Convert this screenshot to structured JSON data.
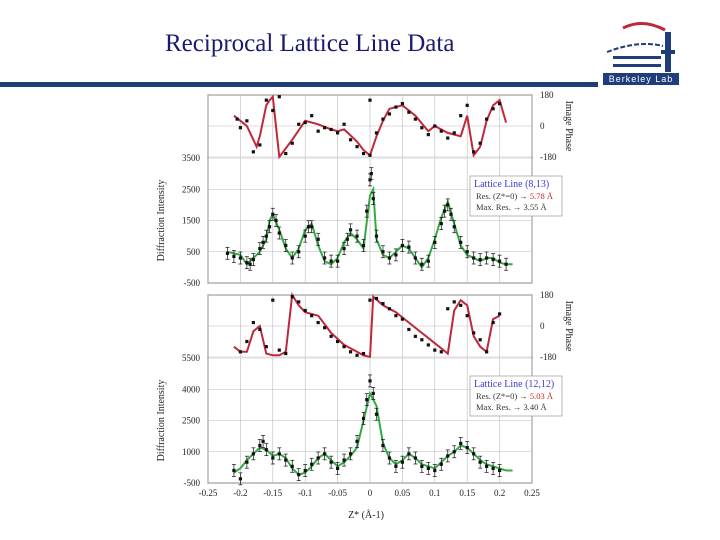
{
  "page": {
    "title": "Reciprocal Lattice Line Data",
    "logo_text": "Berkeley Lab"
  },
  "colors": {
    "title": "#1a1a6e",
    "rule": "#1f3d7a",
    "phase_curve": "#c0283a",
    "intensity_curve": "#33aa44",
    "points": "#111111",
    "grid": "#bbbbbb"
  },
  "chart_data": [
    {
      "type": "scatter",
      "panel": "phase",
      "ylabel": "Image Phase",
      "xlim": [
        -0.25,
        0.25
      ],
      "ylim": [
        -180,
        180
      ],
      "yticks": [
        "180",
        "0",
        "-180"
      ],
      "fit_curve": {
        "x": [
          -0.21,
          -0.2,
          -0.19,
          -0.175,
          -0.17,
          -0.16,
          -0.155,
          -0.15,
          -0.14,
          -0.12,
          -0.1,
          -0.08,
          -0.06,
          -0.05,
          -0.04,
          -0.02,
          -0.01,
          0.0,
          0.01,
          0.02,
          0.03,
          0.05,
          0.07,
          0.09,
          0.1,
          0.12,
          0.14,
          0.15,
          0.16,
          0.17,
          0.18,
          0.19,
          0.2,
          0.21
        ],
        "y": [
          60,
          30,
          0,
          -120,
          -60,
          120,
          150,
          170,
          -180,
          -80,
          30,
          10,
          -20,
          -30,
          -20,
          -90,
          -140,
          -170,
          -60,
          30,
          100,
          120,
          60,
          -30,
          0,
          -40,
          -60,
          60,
          -170,
          -120,
          30,
          120,
          150,
          20
        ]
      },
      "points": {
        "x": [
          -0.205,
          -0.2,
          -0.19,
          -0.18,
          -0.17,
          -0.16,
          -0.15,
          -0.14,
          -0.13,
          -0.12,
          -0.11,
          -0.1,
          -0.09,
          -0.08,
          -0.07,
          -0.06,
          -0.05,
          -0.04,
          -0.03,
          -0.02,
          -0.01,
          0.0,
          0.0,
          0.01,
          0.02,
          0.03,
          0.04,
          0.05,
          0.06,
          0.07,
          0.08,
          0.09,
          0.1,
          0.11,
          0.12,
          0.13,
          0.14,
          0.15,
          0.16,
          0.17,
          0.18,
          0.19,
          0.2
        ],
        "y": [
          40,
          -10,
          30,
          -150,
          -110,
          150,
          90,
          170,
          -160,
          -100,
          10,
          20,
          60,
          -30,
          -10,
          -20,
          -40,
          10,
          -80,
          -120,
          -160,
          -170,
          150,
          -40,
          40,
          70,
          110,
          130,
          80,
          40,
          -10,
          -50,
          0,
          -30,
          -70,
          -40,
          60,
          120,
          -150,
          -100,
          40,
          100,
          130
        ]
      }
    },
    {
      "type": "line",
      "panel": "intensity",
      "ylabel": "Diffraction Intensity",
      "xlim": [
        -0.25,
        0.25
      ],
      "ylim": [
        -500,
        3500
      ],
      "yticks": [
        "3500",
        "2500",
        "1500",
        "500",
        "-500"
      ],
      "legend": {
        "title": "Lattice Line (8,13)",
        "line1_label": "Res. (Z*=0) → ",
        "line1_value": "5.78 Å",
        "line2_label": "Max. Res. → 3.55 Å"
      },
      "fit_curve": {
        "x": [
          -0.22,
          -0.2,
          -0.19,
          -0.18,
          -0.17,
          -0.16,
          -0.155,
          -0.15,
          -0.14,
          -0.13,
          -0.12,
          -0.11,
          -0.1,
          -0.09,
          -0.08,
          -0.07,
          -0.06,
          -0.05,
          -0.04,
          -0.03,
          -0.02,
          -0.01,
          0.0,
          0.005,
          0.01,
          0.02,
          0.03,
          0.04,
          0.05,
          0.06,
          0.07,
          0.08,
          0.09,
          0.1,
          0.11,
          0.12,
          0.13,
          0.14,
          0.15,
          0.16,
          0.17,
          0.18,
          0.19,
          0.2,
          0.21,
          0.22
        ],
        "y": [
          500,
          400,
          100,
          300,
          500,
          900,
          1500,
          1700,
          1200,
          600,
          300,
          600,
          1200,
          1400,
          700,
          200,
          100,
          300,
          800,
          1100,
          900,
          600,
          2300,
          2500,
          900,
          400,
          300,
          500,
          700,
          600,
          300,
          0,
          300,
          900,
          1600,
          2100,
          1400,
          700,
          400,
          300,
          200,
          300,
          300,
          150,
          100,
          100
        ]
      },
      "points": {
        "x": [
          -0.22,
          -0.21,
          -0.2,
          -0.19,
          -0.185,
          -0.18,
          -0.17,
          -0.165,
          -0.16,
          -0.155,
          -0.15,
          -0.145,
          -0.14,
          -0.13,
          -0.12,
          -0.11,
          -0.1,
          -0.095,
          -0.09,
          -0.08,
          -0.07,
          -0.06,
          -0.05,
          -0.04,
          -0.035,
          -0.03,
          -0.02,
          -0.01,
          -0.005,
          0.0,
          0.002,
          0.005,
          0.01,
          0.02,
          0.03,
          0.04,
          0.05,
          0.06,
          0.07,
          0.08,
          0.09,
          0.1,
          0.11,
          0.115,
          0.12,
          0.125,
          0.13,
          0.14,
          0.15,
          0.16,
          0.17,
          0.18,
          0.19,
          0.2,
          0.21
        ],
        "y": [
          450,
          350,
          300,
          150,
          100,
          250,
          600,
          800,
          1000,
          1300,
          1700,
          1500,
          1100,
          700,
          300,
          500,
          1000,
          1300,
          1300,
          900,
          300,
          200,
          200,
          600,
          900,
          1200,
          1000,
          700,
          1800,
          2800,
          3000,
          2200,
          1000,
          500,
          300,
          400,
          700,
          650,
          300,
          100,
          200,
          800,
          1400,
          1800,
          2000,
          1700,
          1300,
          800,
          500,
          300,
          250,
          300,
          250,
          200,
          100
        ]
      }
    },
    {
      "type": "scatter",
      "panel": "phase",
      "ylabel": "Image Phase",
      "xlim": [
        -0.25,
        0.25
      ],
      "ylim": [
        -180,
        180
      ],
      "yticks": [
        "180",
        "0",
        "-180"
      ],
      "fit_curve": {
        "x": [
          -0.21,
          -0.2,
          -0.19,
          -0.18,
          -0.17,
          -0.16,
          -0.15,
          -0.14,
          -0.13,
          -0.12,
          -0.11,
          -0.1,
          -0.08,
          -0.06,
          -0.04,
          -0.02,
          -0.01,
          0.0,
          0.005,
          0.02,
          0.04,
          0.06,
          0.08,
          0.1,
          0.12,
          0.13,
          0.14,
          0.15,
          0.16,
          0.17,
          0.18,
          0.19,
          0.2
        ],
        "y": [
          -120,
          -150,
          -150,
          -30,
          0,
          -160,
          -170,
          -170,
          -150,
          180,
          120,
          80,
          60,
          -40,
          -110,
          -150,
          -170,
          -180,
          170,
          120,
          80,
          20,
          -40,
          -100,
          -160,
          90,
          150,
          120,
          -60,
          -120,
          -150,
          40,
          60
        ]
      },
      "points": {
        "x": [
          -0.2,
          -0.19,
          -0.18,
          -0.17,
          -0.16,
          -0.15,
          -0.14,
          -0.13,
          -0.12,
          -0.11,
          -0.1,
          -0.09,
          -0.08,
          -0.07,
          -0.06,
          -0.05,
          -0.04,
          -0.03,
          -0.02,
          -0.01,
          0.0,
          0.01,
          0.02,
          0.03,
          0.04,
          0.05,
          0.06,
          0.07,
          0.08,
          0.09,
          0.1,
          0.11,
          0.12,
          0.13,
          0.14,
          0.15,
          0.16,
          0.17,
          0.18,
          0.19,
          0.2
        ],
        "y": [
          -150,
          -90,
          20,
          -20,
          -120,
          150,
          -140,
          -160,
          170,
          140,
          90,
          60,
          20,
          -10,
          -60,
          -90,
          -120,
          -150,
          -170,
          -160,
          150,
          160,
          130,
          100,
          60,
          40,
          -20,
          -60,
          -80,
          -110,
          -140,
          -150,
          100,
          140,
          120,
          60,
          -40,
          -80,
          -150,
          20,
          70
        ]
      }
    },
    {
      "type": "line",
      "panel": "intensity",
      "ylabel": "Diffraction Intensity",
      "xlabel": "Z* (Å-1)",
      "xlim": [
        -0.25,
        0.25
      ],
      "xticks": [
        "-0.25",
        "-0.2",
        "-0.15",
        "-0.1",
        "-0.05",
        "0",
        "0.05",
        "0.1",
        "0.15",
        "0.2",
        "0.25"
      ],
      "ylim": [
        -500,
        5500
      ],
      "yticks": [
        "5500",
        "4000",
        "2500",
        "1000",
        "-500"
      ],
      "legend": {
        "title": "Lattice Line (12,12)",
        "line1_label": "Res. (Z*=0) → ",
        "line1_value": "5.03 Å",
        "line2_label": "Max. Res. → 3.40 Å"
      },
      "fit_curve": {
        "x": [
          -0.21,
          -0.2,
          -0.19,
          -0.18,
          -0.17,
          -0.16,
          -0.15,
          -0.14,
          -0.13,
          -0.12,
          -0.11,
          -0.1,
          -0.09,
          -0.08,
          -0.07,
          -0.06,
          -0.05,
          -0.04,
          -0.03,
          -0.02,
          -0.01,
          0.0,
          0.01,
          0.02,
          0.03,
          0.04,
          0.05,
          0.06,
          0.07,
          0.08,
          0.09,
          0.1,
          0.11,
          0.12,
          0.13,
          0.14,
          0.15,
          0.16,
          0.17,
          0.18,
          0.19,
          0.2,
          0.21,
          0.22
        ],
        "y": [
          0,
          200,
          600,
          900,
          1200,
          1100,
          800,
          900,
          700,
          200,
          -100,
          0,
          300,
          700,
          900,
          600,
          300,
          500,
          800,
          1200,
          2500,
          3800,
          3200,
          1400,
          700,
          400,
          600,
          900,
          700,
          400,
          300,
          200,
          500,
          800,
          1000,
          1300,
          1200,
          900,
          600,
          400,
          300,
          200,
          100,
          100
        ]
      },
      "points": {
        "x": [
          -0.21,
          -0.2,
          -0.19,
          -0.18,
          -0.17,
          -0.165,
          -0.16,
          -0.15,
          -0.14,
          -0.13,
          -0.12,
          -0.11,
          -0.1,
          -0.09,
          -0.08,
          -0.07,
          -0.06,
          -0.05,
          -0.04,
          -0.03,
          -0.02,
          -0.01,
          -0.005,
          0.0,
          0.005,
          0.01,
          0.02,
          0.03,
          0.04,
          0.05,
          0.06,
          0.07,
          0.08,
          0.09,
          0.1,
          0.11,
          0.12,
          0.13,
          0.14,
          0.15,
          0.16,
          0.17,
          0.18,
          0.19,
          0.2
        ],
        "y": [
          100,
          -300,
          500,
          900,
          1300,
          1500,
          1100,
          700,
          900,
          600,
          300,
          -100,
          100,
          400,
          700,
          900,
          500,
          200,
          600,
          900,
          1500,
          2600,
          3500,
          4400,
          3800,
          2800,
          1300,
          700,
          300,
          500,
          900,
          700,
          300,
          200,
          100,
          400,
          800,
          1000,
          1400,
          1200,
          900,
          500,
          300,
          200,
          100
        ]
      }
    }
  ]
}
